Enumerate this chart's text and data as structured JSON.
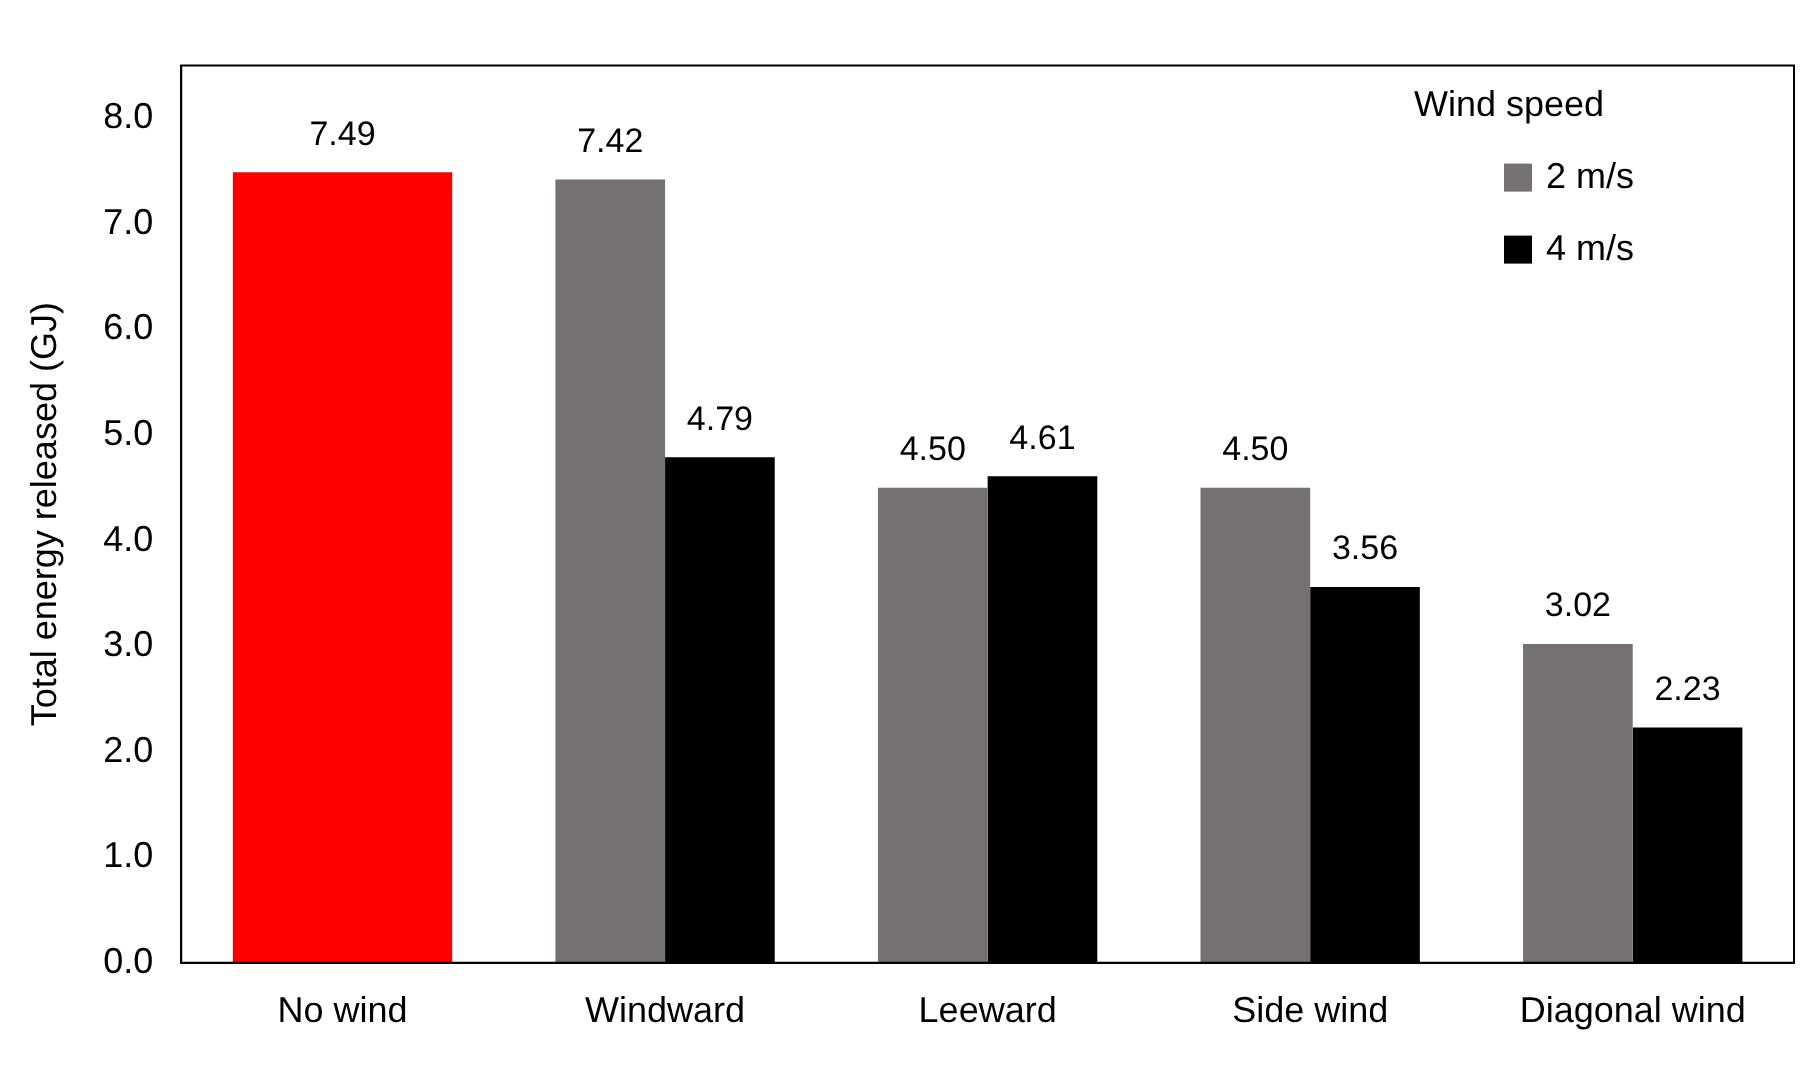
{
  "chart_data": {
    "type": "bar",
    "ylabel": "Total energy released (GJ)",
    "legend_title": "Wind speed",
    "categories": [
      "No wind",
      "Windward",
      "Leeward",
      "Side wind",
      "Diagonal wind"
    ],
    "series": [
      {
        "name": "2 m/s",
        "color": "#767171",
        "colors": [
          "#ff0000",
          "#767171",
          "#767171",
          "#767171",
          "#767171"
        ],
        "values": [
          7.49,
          7.42,
          4.5,
          4.5,
          3.02
        ]
      },
      {
        "name": "4 m/s",
        "color": "#000000",
        "values": [
          null,
          4.79,
          4.61,
          3.56,
          2.23
        ]
      }
    ],
    "value_labels": [
      [
        "7.49",
        "7.42",
        "4.50",
        "4.50",
        "3.02"
      ],
      [
        null,
        "4.79",
        "4.61",
        "3.56",
        "2.23"
      ]
    ],
    "ylim": [
      0,
      8.5
    ],
    "yticks": [
      {
        "value": 0,
        "label": "0.0"
      },
      {
        "value": 1,
        "label": "1.0"
      },
      {
        "value": 2,
        "label": "2.0"
      },
      {
        "value": 3,
        "label": "3.0"
      },
      {
        "value": 4,
        "label": "4.0"
      },
      {
        "value": 5,
        "label": "5.0"
      },
      {
        "value": 6,
        "label": "6.0"
      },
      {
        "value": 7,
        "label": "7.0"
      },
      {
        "value": 8,
        "label": "8.0"
      }
    ],
    "grid": false,
    "legend": "top right"
  }
}
